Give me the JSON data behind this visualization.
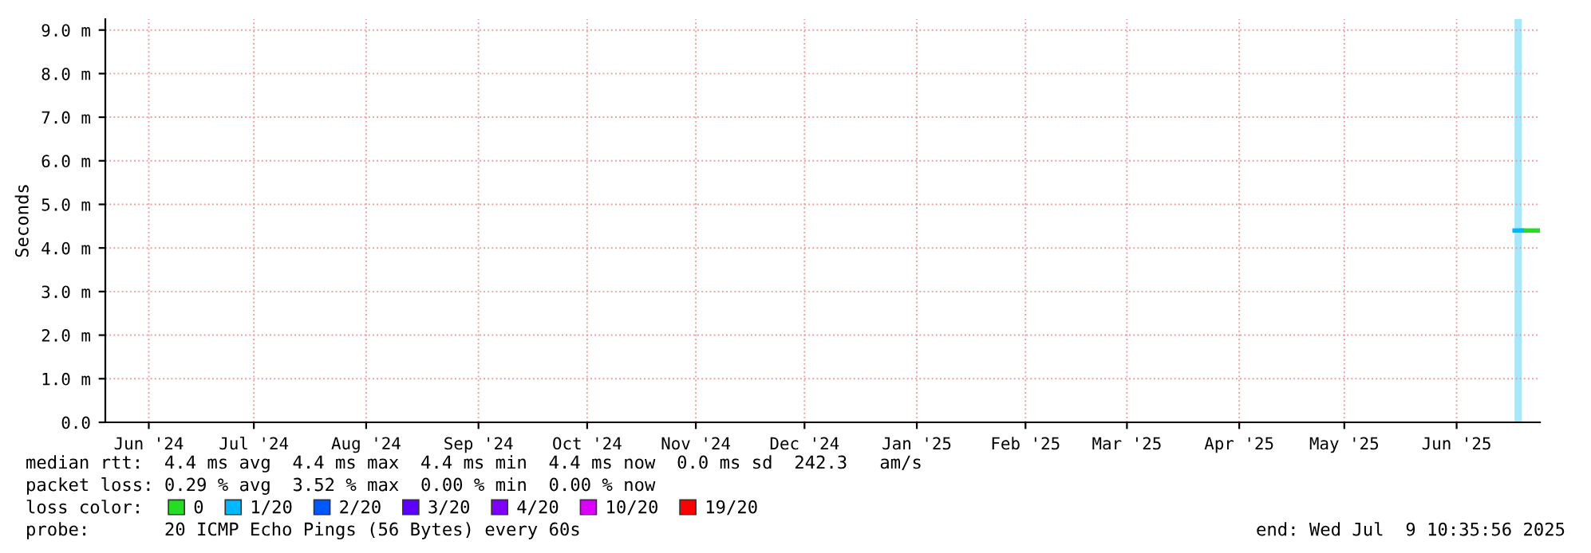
{
  "chart_data": {
    "type": "line",
    "ylabel": "Seconds",
    "xlim": [
      "2024-06-08",
      "2025-07-09"
    ],
    "xticks": [
      {
        "value": "2024-06-20",
        "label": "Jun '24"
      },
      {
        "value": "2024-07-19",
        "label": "Jul '24"
      },
      {
        "value": "2024-08-19",
        "label": "Aug '24"
      },
      {
        "value": "2024-09-19",
        "label": "Sep '24"
      },
      {
        "value": "2024-10-19",
        "label": "Oct '24"
      },
      {
        "value": "2024-11-18",
        "label": "Nov '24"
      },
      {
        "value": "2024-12-18",
        "label": "Dec '24"
      },
      {
        "value": "2025-01-18",
        "label": "Jan '25"
      },
      {
        "value": "2025-02-17",
        "label": "Feb '25"
      },
      {
        "value": "2025-03-17",
        "label": "Mar '25"
      },
      {
        "value": "2025-04-17",
        "label": "Apr '25"
      },
      {
        "value": "2025-05-16",
        "label": "May '25"
      },
      {
        "value": "2025-06-16",
        "label": "Jun '25"
      }
    ],
    "ylim": [
      0,
      9.25
    ],
    "yticks": [
      {
        "value": 0,
        "label": "0.0"
      },
      {
        "value": 1,
        "label": "1.0 m"
      },
      {
        "value": 2,
        "label": "2.0 m"
      },
      {
        "value": 3,
        "label": "3.0 m"
      },
      {
        "value": 4,
        "label": "4.0 m"
      },
      {
        "value": 5,
        "label": "5.0 m"
      },
      {
        "value": 6,
        "label": "6.0 m"
      },
      {
        "value": 7,
        "label": "7.0 m"
      },
      {
        "value": 8,
        "label": "8.0 m"
      },
      {
        "value": 9,
        "label": "9.0 m"
      }
    ],
    "grid": true,
    "legend": "bottom left",
    "legend_title": "loss color:",
    "series": [
      {
        "name": "0",
        "color": "#26dd26",
        "x": [
          "2025-07-04",
          "2025-07-09"
        ],
        "values": [
          4.4,
          4.4
        ]
      },
      {
        "name": "1/20",
        "color": "#00b8ff",
        "x": [
          "2025-07-02",
          "2025-07-04"
        ],
        "values": [
          4.4,
          4.4
        ]
      },
      {
        "name": "2/20",
        "color": "#0059ff"
      },
      {
        "name": "3/20",
        "color": "#5e00ff"
      },
      {
        "name": "4/20",
        "color": "#7e00ff"
      },
      {
        "name": "10/20",
        "color": "#dd00ff"
      },
      {
        "name": "19/20",
        "color": "#ff0000"
      }
    ],
    "bands": [
      {
        "axis": "x",
        "from": "2025-07-02",
        "to": "2025-07-04",
        "color": "#a8e6fa"
      }
    ],
    "annotations": [
      "median rtt:  4.4 ms avg  4.4 ms max  4.4 ms min  4.4 ms now  0.0 ms sd  242.3   am/s",
      "packet loss: 0.29 % avg  3.52 % max  0.00 % min  0.00 % now",
      "probe:       20 ICMP Echo Pings (56 Bytes) every 60s",
      "end: Wed Jul  9 10:35:56 2025"
    ]
  }
}
